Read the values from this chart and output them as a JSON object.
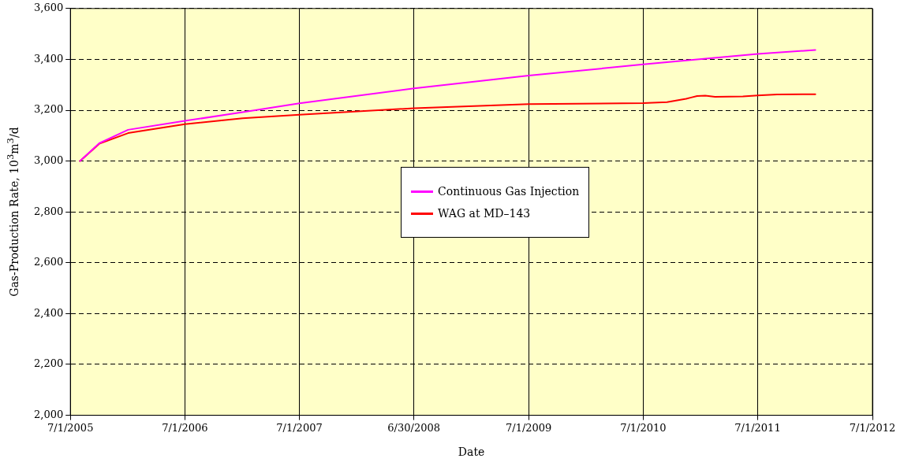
{
  "chart_data": {
    "type": "line",
    "xlabel": "Date",
    "ylabel": "Gas-Production Rate, 10$^{3}$m$^{3}$/d",
    "x": [
      "2005-08-01",
      "2005-10-01",
      "2006-01-01",
      "2006-07-01",
      "2007-01-01",
      "2007-07-01",
      "2008-07-01",
      "2009-07-01",
      "2010-07-01",
      "2011-07-01",
      "2012-01-01"
    ],
    "series": [
      {
        "name": "Continuous Gas Injection",
        "color": "#ff00ff",
        "values": [
          3000,
          3070,
          3123,
          3158,
          3192,
          3227,
          3286,
          3336,
          3380,
          3421,
          3437
        ]
      },
      {
        "name": "WAG at MD–143",
        "color": "#ff0000",
        "x": [
          "2005-08-01",
          "2005-10-01",
          "2006-01-01",
          "2006-07-01",
          "2007-01-01",
          "2007-07-01",
          "2008-07-01",
          "2009-07-01",
          "2010-07-01",
          "2010-09-15",
          "2010-11-15",
          "2010-12-01",
          "2010-12-20",
          "2011-01-15",
          "2011-02-15",
          "2011-05-15",
          "2011-07-01",
          "2011-09-01",
          "2012-01-01"
        ],
        "values": [
          3000,
          3068,
          3110,
          3145,
          3168,
          3182,
          3208,
          3224,
          3228,
          3232,
          3245,
          3250,
          3256,
          3257,
          3253,
          3254,
          3258,
          3262,
          3263
        ]
      }
    ],
    "xlim": [
      "2005-07-01",
      "2012-07-01"
    ],
    "xticks": [
      {
        "value": "2005-07-01",
        "label": "7/1/2005"
      },
      {
        "value": "2006-07-01",
        "label": "7/1/2006"
      },
      {
        "value": "2007-07-01",
        "label": "7/1/2007"
      },
      {
        "value": "2008-06-30",
        "label": "6/30/2008"
      },
      {
        "value": "2009-07-01",
        "label": "7/1/2009"
      },
      {
        "value": "2010-07-01",
        "label": "7/1/2010"
      },
      {
        "value": "2011-07-01",
        "label": "7/1/2011"
      },
      {
        "value": "2012-07-01",
        "label": "7/1/2012"
      }
    ],
    "ylim": [
      2000,
      3600
    ],
    "yticks": [
      {
        "value": 2000,
        "label": "2,000"
      },
      {
        "value": 2200,
        "label": "2,200"
      },
      {
        "value": 2400,
        "label": "2,400"
      },
      {
        "value": 2600,
        "label": "2,600"
      },
      {
        "value": 2800,
        "label": "2,800"
      },
      {
        "value": 3000,
        "label": "3,000"
      },
      {
        "value": 3200,
        "label": "3,200"
      },
      {
        "value": 3400,
        "label": "3,400"
      },
      {
        "value": 3600,
        "label": "3,600"
      }
    ],
    "grid": true,
    "legend": "center",
    "marker": "none",
    "line_style": "solid"
  }
}
